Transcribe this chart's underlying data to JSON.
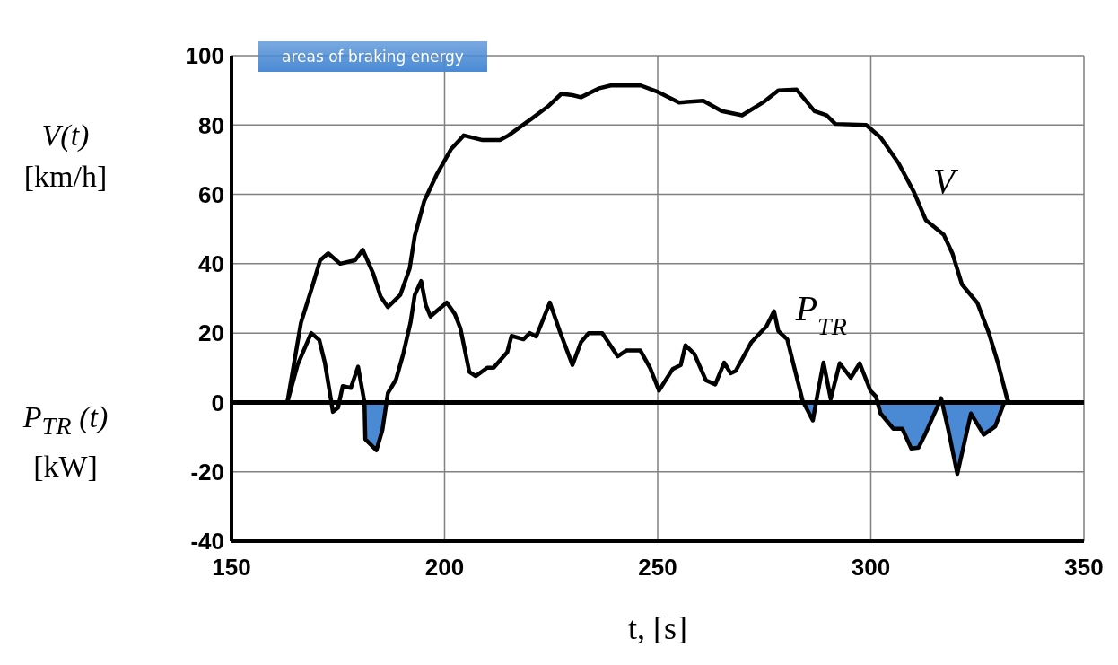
{
  "chart_data": {
    "type": "line",
    "xlabel": "t,  [s]",
    "ylabel": "V(t)\n[km/h]\n\nP$_{TR}$ (t)\n[kW]",
    "xlim": [
      150,
      350
    ],
    "xticks": [
      150,
      200,
      250,
      300,
      350
    ],
    "ylim": [
      -40,
      100
    ],
    "yticks": [
      -40,
      -20,
      0,
      20,
      40,
      60,
      80,
      100
    ],
    "grid": true,
    "legend": "top left",
    "ref_lines": [
      {
        "axis": "y",
        "value": 0,
        "color": "#000000"
      }
    ],
    "series": [
      {
        "name": "V",
        "color": "#000000",
        "x": [
          163.1,
          166.3,
          169.1,
          170.8,
          172.7,
          175.5,
          179,
          180.8,
          183.3,
          185,
          186.7,
          189.6,
          191.8,
          193,
          195.2,
          198.1,
          201.5,
          204.5,
          208.7,
          213,
          215,
          217.9,
          220.6,
          224.2,
          227.4,
          230,
          232,
          236.3,
          239,
          246,
          250.3,
          255,
          260.7,
          265,
          269.8,
          274.7,
          278.3,
          282.6,
          286.8,
          289.6,
          291.7,
          298.9,
          302.3,
          306.5,
          310.1,
          312.9,
          317.1,
          319.2,
          321.4,
          325,
          327.7,
          329.8,
          332,
          332.5
        ],
        "values": [
          0,
          23,
          34,
          41,
          43,
          40,
          41,
          44,
          37,
          30.5,
          27.5,
          31,
          38.6,
          48,
          58,
          65.6,
          73,
          77,
          75.7,
          75.7,
          77,
          79.6,
          82,
          85.3,
          89,
          88.6,
          88,
          90.6,
          91.4,
          91.4,
          89.4,
          86.5,
          87,
          84,
          82.8,
          86.5,
          90,
          90.2,
          84,
          82.8,
          80.3,
          80,
          76.4,
          69,
          60.7,
          52.6,
          48.4,
          42.8,
          34,
          28.7,
          20,
          11.5,
          1,
          0
        ]
      },
      {
        "name": "P$_{TR}$",
        "color": "#000000",
        "x": [
          163.1,
          165.5,
          168.7,
          170.6,
          171.9,
          173.8,
          175,
          176.1,
          178,
          179.7,
          181.2,
          181.4,
          184,
          185.4,
          186.7,
          188.6,
          190.3,
          192,
          193,
          194.5,
          195.6,
          196.7,
          198.1,
          200.5,
          202.4,
          203.7,
          205.8,
          207.3,
          210,
          211.5,
          214.7,
          215.7,
          218.5,
          220,
          221.5,
          224.7,
          227,
          230,
          232,
          233.8,
          237,
          240.6,
          242.7,
          245.9,
          248.2,
          250.3,
          253.5,
          255.4,
          256.5,
          258.6,
          261.3,
          263.5,
          265.6,
          267.1,
          268.3,
          272,
          275.5,
          277.3,
          278.3,
          280.4,
          284,
          286.4,
          287.4,
          288.9,
          290.6,
          292.7,
          295.3,
          297.4,
          299.9,
          301.2,
          302.3,
          305.3,
          307.4,
          309.5,
          311.2,
          312.9,
          316.5,
          318.2,
          320.3,
          323.5,
          326.5,
          329.2,
          331.3
        ],
        "values": [
          0,
          10.8,
          20,
          18,
          11.5,
          -2.7,
          -1.5,
          4.7,
          4.2,
          10.3,
          0,
          -10.6,
          -13.8,
          -8,
          2.7,
          6.6,
          14,
          23,
          31,
          35,
          28,
          24.8,
          26.3,
          28.8,
          25.5,
          21.4,
          8.8,
          7.6,
          10,
          10,
          14.5,
          19.2,
          18.2,
          20,
          19,
          28.8,
          20.6,
          10.8,
          17.4,
          20,
          20,
          13.3,
          15,
          15,
          10,
          3.4,
          9.6,
          10.8,
          16.5,
          14,
          6.4,
          5.2,
          11.5,
          8.4,
          9.1,
          17.4,
          21.9,
          26.3,
          20.6,
          18.2,
          0.5,
          -5.2,
          1.7,
          11.5,
          1,
          11.3,
          7.1,
          11.3,
          3.4,
          1.7,
          -3.2,
          -7.6,
          -7.6,
          -13.3,
          -13,
          -8.8,
          1.2,
          -8,
          -20.6,
          -3.2,
          -9.3,
          -6.9,
          0
        ]
      },
      {
        "name": "areas of braking energy",
        "type": "area",
        "color": "#4a8ad4",
        "x": [
          181.2,
          181.4,
          184,
          185.4,
          186.2,
          250,
          284.2,
          286.4,
          287.2,
          295,
          301.8,
          302.3,
          305.3,
          307.4,
          309.5,
          311.2,
          312.9,
          316,
          316.5,
          317,
          318.2,
          320.3,
          323.5,
          326.5,
          329.2,
          331.3
        ],
        "values": [
          0,
          -10.6,
          -13.8,
          -8,
          0,
          null,
          0,
          -5.2,
          0,
          null,
          0,
          -3.2,
          -7.6,
          -7.6,
          -13.3,
          -13,
          -8.8,
          0,
          null,
          0,
          -8,
          -20.6,
          -3.2,
          -9.3,
          -6.9,
          0
        ]
      }
    ]
  }
}
